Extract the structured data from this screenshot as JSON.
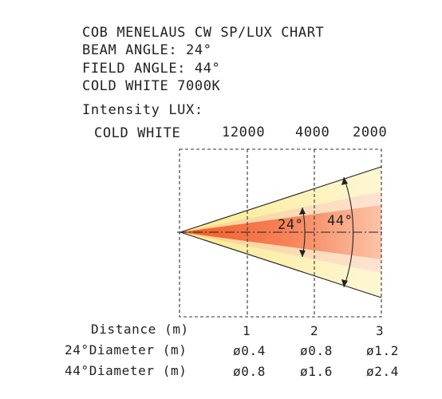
{
  "header": {
    "title": "COB MENELAUS CW SP/LUX CHART",
    "beam_angle": "BEAM ANGLE: 24°",
    "field_angle": "FIELD ANGLE: 44°",
    "color_temp": "COLD WHITE 7000K"
  },
  "intensity": {
    "label": "Intensity LUX:",
    "color_label": "COLD WHITE",
    "values": [
      "12000",
      "4000",
      "2000"
    ]
  },
  "beam": {
    "inner_angle_label": "24°",
    "outer_angle_label": "44°",
    "colors": {
      "core": "#f4773a",
      "mid": "#fbc9a6",
      "outer": "#fbf3b4",
      "line": "#333333"
    }
  },
  "table": {
    "distance_label": "Distance (m)",
    "distances": [
      "1",
      "2",
      "3"
    ],
    "d24_label": "24°Diameter (m)",
    "d24_values": [
      "ø0.4",
      "ø0.8",
      "ø1.2"
    ],
    "d44_label": "44°Diameter (m)",
    "d44_values": [
      "ø0.8",
      "ø1.6",
      "ø2.4"
    ]
  }
}
